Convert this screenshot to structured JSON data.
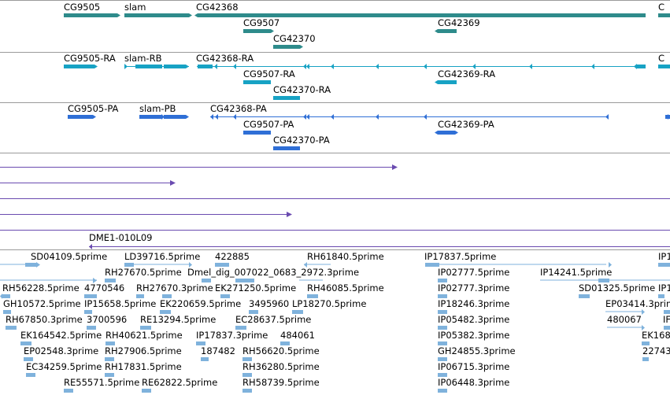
{
  "gene_track": {
    "color": "#2e8b8b",
    "labels": [
      "CG9505",
      "slam",
      "CG42368",
      "CG9507",
      "CG42370",
      "CG42369",
      "C"
    ]
  },
  "transcript_track": {
    "color": "#17a2c4",
    "labels": [
      "CG9505-RA",
      "slam-RB",
      "CG42368-RA",
      "CG9507-RA",
      "CG42370-RA",
      "CG42369-RA",
      "C"
    ]
  },
  "protein_track": {
    "color": "#2f6fd6",
    "labels": [
      "CG9505-PA",
      "slam-PB",
      "CG42368-PA",
      "CG9507-PA",
      "CG42370-PA",
      "CG42369-PA"
    ]
  },
  "alignment_track": {
    "color": "#6a4bb0",
    "labels": [
      "DME1-010L09"
    ]
  },
  "est_track": {
    "color": "#7fb2dc",
    "labels": [
      "SD04109.5prime",
      "LD39716.5prime",
      "422885",
      "RH61840.5prime",
      "IP17837.5prime",
      "IP1",
      "RH27670.5prime",
      "Dmel_dig_007022_0683_2972.3prime",
      "IP02777.5prime",
      "IP14241.5prime",
      "RH56228.5prime",
      "4770546",
      "RH27670.3prime",
      "EK271250.5prime",
      "RH46085.5prime",
      "IP02777.3prime",
      "SD01325.5prime",
      "IP1",
      "GH10572.5prime",
      "IP15658.5prime",
      "EK220659.5prime",
      "3495960",
      "LP18270.5prime",
      "IP18246.3prime",
      "EP03414.3prime",
      "RH67850.3prime",
      "3700596",
      "RE13294.5prime",
      "EC28637.5prime",
      "IP05482.3prime",
      "480067",
      "IF",
      "EK164542.5prime",
      "RH40621.5prime",
      "IP17837.3prime",
      "484061",
      "IP05382.3prime",
      "EK168",
      "187482",
      "RH56620.5prime",
      "EP02548.3prime",
      "RH27906.5prime",
      "GH24855.3prime",
      "22743",
      "EC34259.5prime",
      "RH17831.5prime",
      "RH36280.5prime",
      "IP06715.3prime",
      "RE55571.5prime",
      "RE62822.5prime",
      "RH58739.5prime",
      "IP06448.3prime"
    ]
  }
}
